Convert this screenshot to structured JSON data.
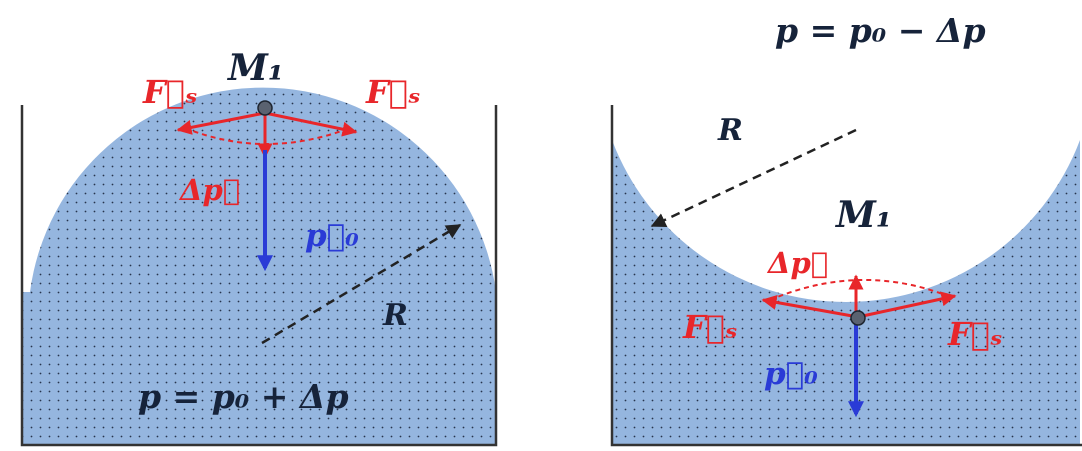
{
  "colors": {
    "liquid": "#95b6df",
    "wall": "#333333",
    "tension_force": "#e8262a",
    "pressure_vector": "#2a3bd6",
    "radius": "#222222",
    "text": "#16233a"
  },
  "left_panel": {
    "point_label": "M₁",
    "force_left_label": "F⃗ₛ",
    "force_right_label": "F⃗ₛ",
    "delta_p_label": "Δp⃗",
    "p0_label": "p⃗₀",
    "radius_label": "R",
    "equation": "p = p₀ + Δp"
  },
  "right_panel": {
    "equation": "p = p₀ − Δp",
    "radius_label": "R",
    "point_label": "M₁",
    "delta_p_label": "Δp⃗",
    "force_left_label": "F⃗ₛ",
    "force_right_label": "F⃗ₛ",
    "p0_label": "p⃗₀"
  }
}
